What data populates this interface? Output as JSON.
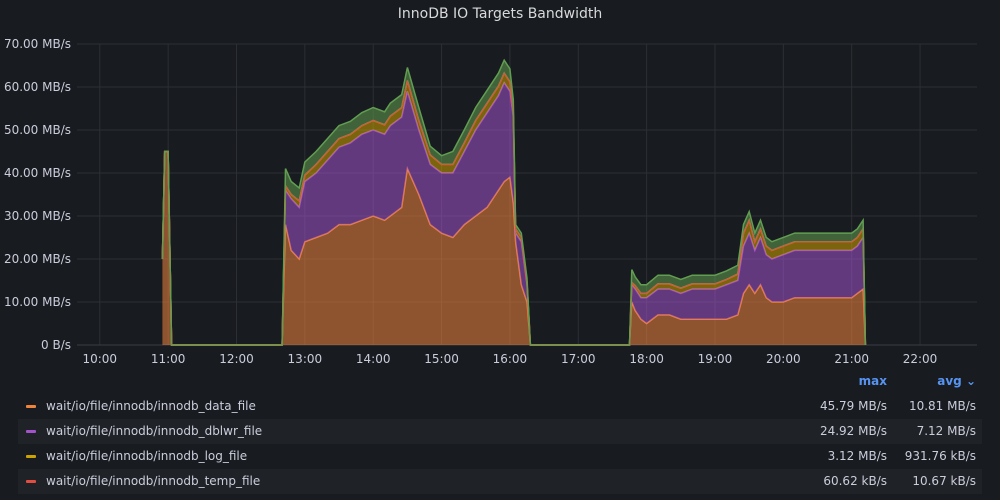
{
  "panel": {
    "title": "InnoDB IO Targets Bandwidth"
  },
  "legend": {
    "max_header": "max",
    "avg_header": "avg ⌄",
    "items": [
      {
        "name": "wait/io/file/innodb/innodb_data_file",
        "max": "45.79 MB/s",
        "avg": "10.81 MB/s",
        "color": "#ef843c"
      },
      {
        "name": "wait/io/file/innodb/innodb_dblwr_file",
        "max": "24.92 MB/s",
        "avg": "7.12 MB/s",
        "color": "#a352cc"
      },
      {
        "name": "wait/io/file/innodb/innodb_log_file",
        "max": "3.12 MB/s",
        "avg": "931.76 kB/s",
        "color": "#cca300"
      },
      {
        "name": "wait/io/file/innodb/innodb_temp_file",
        "max": "60.62 kB/s",
        "avg": "10.67 kB/s",
        "color": "#e24d42"
      }
    ]
  },
  "chart_data": {
    "type": "area",
    "title": "InnoDB IO Targets Bandwidth",
    "stacked": true,
    "x_ticks": [
      "10:00",
      "11:00",
      "12:00",
      "13:00",
      "14:00",
      "15:00",
      "16:00",
      "17:00",
      "18:00",
      "19:00",
      "20:00",
      "21:00",
      "22:00"
    ],
    "y_ticks": [
      "0 B/s",
      "10.00 MB/s",
      "20.00 MB/s",
      "30.00 MB/s",
      "40.00 MB/s",
      "50.00 MB/s",
      "60.00 MB/s",
      "70.00 MB/s"
    ],
    "x_range": [
      "09:40",
      "22:50"
    ],
    "ylim": [
      0,
      70
    ],
    "y_unit": "MB/s",
    "grid": true,
    "x": [
      "10:55",
      "10:57",
      "11:00",
      "11:03",
      "11:05",
      "12:40",
      "12:43",
      "12:48",
      "12:55",
      "13:00",
      "13:10",
      "13:20",
      "13:30",
      "13:40",
      "13:50",
      "14:00",
      "14:10",
      "14:15",
      "14:20",
      "14:25",
      "14:30",
      "14:40",
      "14:50",
      "15:00",
      "15:10",
      "15:20",
      "15:30",
      "15:40",
      "15:50",
      "15:55",
      "16:00",
      "16:03",
      "16:05",
      "16:10",
      "16:15",
      "16:18",
      "16:20",
      "17:45",
      "17:47",
      "17:50",
      "17:55",
      "18:00",
      "18:10",
      "18:20",
      "18:30",
      "18:40",
      "18:50",
      "19:00",
      "19:10",
      "19:20",
      "19:25",
      "19:30",
      "19:35",
      "19:40",
      "19:45",
      "19:50",
      "20:00",
      "20:10",
      "20:20",
      "20:30",
      "20:40",
      "20:50",
      "21:00",
      "21:05",
      "21:10",
      "21:12"
    ],
    "series": [
      {
        "name": "wait/io/file/innodb/innodb_data_file",
        "color": "#ef843c",
        "values": [
          20,
          45,
          45,
          0,
          0,
          0,
          28,
          22,
          20,
          24,
          25,
          26,
          28,
          28,
          29,
          30,
          29,
          30,
          31,
          32,
          41,
          35,
          28,
          26,
          25,
          28,
          30,
          32,
          36,
          38,
          39,
          33,
          24,
          14,
          10,
          0,
          0,
          0,
          10,
          8,
          6,
          5,
          7,
          7,
          6,
          6,
          6,
          6,
          6,
          7,
          12,
          14,
          12,
          14,
          11,
          10,
          10,
          11,
          11,
          11,
          11,
          11,
          11,
          12,
          13,
          0
        ]
      },
      {
        "name": "wait/io/file/innodb/innodb_dblwr_file",
        "color": "#a352cc",
        "values": [
          0,
          0,
          0,
          0,
          0,
          0,
          8,
          12,
          12,
          14,
          15,
          17,
          18,
          19,
          20,
          20,
          20,
          21,
          21,
          21,
          18,
          15,
          14,
          14,
          15,
          17,
          20,
          22,
          22,
          23,
          20,
          20,
          2,
          10,
          4,
          0,
          0,
          0,
          4,
          5,
          5,
          6,
          6,
          6,
          6,
          7,
          7,
          7,
          8,
          8,
          11,
          12,
          10,
          11,
          10,
          10,
          11,
          11,
          11,
          11,
          11,
          11,
          11,
          11,
          12,
          0
        ]
      },
      {
        "name": "wait/io/file/innodb/innodb_log_file",
        "color": "#cca300",
        "values": [
          0,
          0,
          0,
          0,
          0,
          0,
          1,
          1,
          1.5,
          1.5,
          2,
          2,
          2,
          2,
          2,
          2.2,
          2.2,
          2.2,
          2.2,
          2.2,
          2.5,
          2.2,
          2.2,
          2,
          2,
          2,
          2.2,
          2.2,
          2.2,
          2.2,
          2.2,
          1,
          1,
          1,
          0.5,
          0,
          0,
          0,
          0.5,
          0.8,
          1,
          1,
          1.2,
          1.2,
          1.2,
          1.2,
          1.2,
          1.2,
          1.2,
          1.5,
          3,
          3,
          2,
          2,
          2,
          2,
          2,
          2,
          2,
          2,
          2,
          2,
          2,
          2,
          2,
          0
        ]
      },
      {
        "name": "wait/io/file/innodb/innodb_temp_file",
        "color": "#e24d42",
        "values": [
          0,
          0,
          0,
          0,
          0,
          0,
          0.03,
          0.03,
          0.03,
          0.03,
          0.03,
          0.03,
          0.03,
          0.03,
          0.03,
          0.03,
          0.03,
          0.03,
          0.03,
          0.03,
          0.03,
          0.03,
          0.03,
          0.03,
          0.03,
          0.03,
          0.03,
          0.03,
          0.03,
          0.03,
          0.03,
          0.03,
          0.03,
          0.03,
          0.03,
          0,
          0,
          0,
          0.03,
          0.03,
          0.03,
          0.03,
          0.03,
          0.03,
          0.03,
          0.03,
          0.03,
          0.03,
          0.03,
          0.03,
          0.03,
          0.03,
          0.03,
          0.03,
          0.03,
          0.03,
          0.03,
          0.03,
          0.03,
          0.03,
          0.03,
          0.03,
          0.03,
          0.03,
          0.03,
          0
        ]
      },
      {
        "name": "",
        "color": "#629e51",
        "values": [
          0,
          0,
          0,
          0,
          0,
          0,
          4,
          3,
          3,
          3,
          3,
          3,
          3,
          3,
          3,
          3,
          3,
          3,
          3,
          3,
          3,
          3,
          2,
          2,
          3,
          3,
          3,
          3,
          3,
          3,
          3,
          3,
          1,
          1,
          1,
          0,
          0,
          0,
          3,
          2,
          2,
          2,
          2,
          2,
          2,
          2,
          2,
          2,
          2,
          2,
          2,
          2,
          2,
          2,
          2,
          2,
          2,
          2,
          2,
          2,
          2,
          2,
          2,
          2,
          2,
          0
        ]
      }
    ]
  }
}
